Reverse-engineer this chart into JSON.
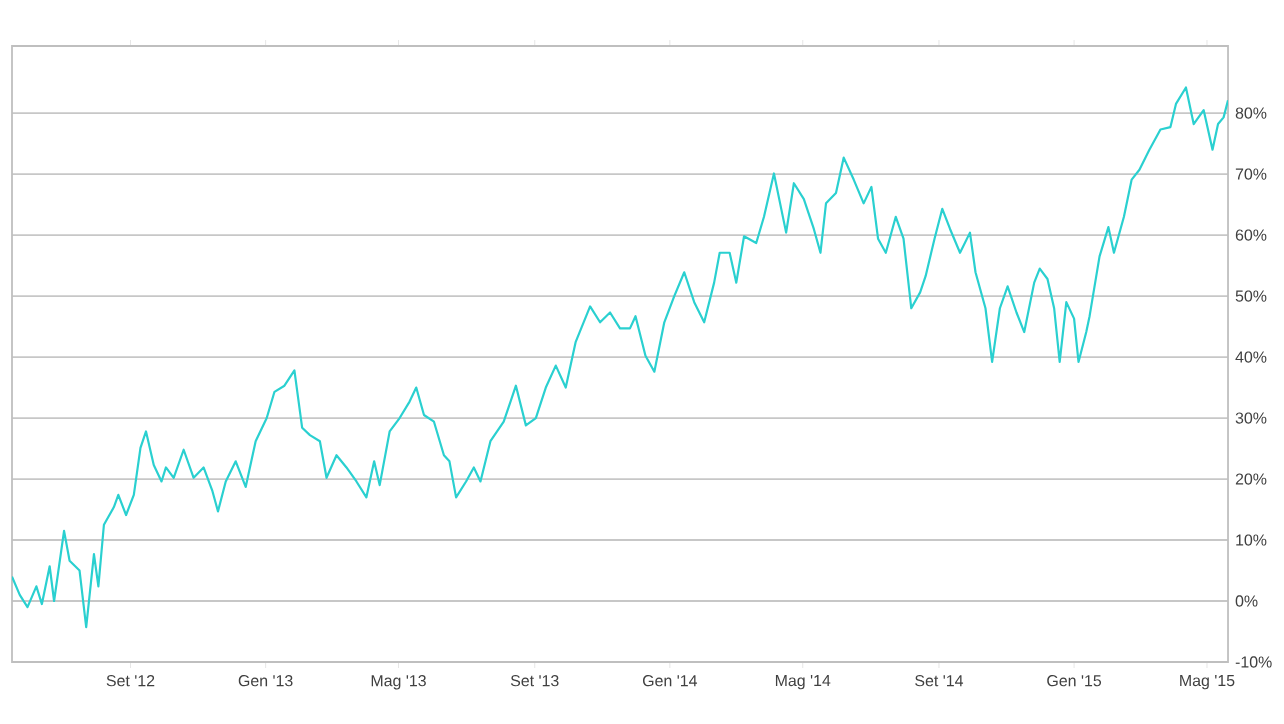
{
  "chart_data": {
    "type": "line",
    "color": "#2ad0d0",
    "xlim": [
      "2012-05-17",
      "2015-05-20"
    ],
    "ylim": [
      -10,
      91
    ],
    "xticks": [
      {
        "value": "2012-09-01",
        "label": "Set '12"
      },
      {
        "value": "2013-01-01",
        "label": "Gen '13"
      },
      {
        "value": "2013-05-01",
        "label": "Mag '13"
      },
      {
        "value": "2013-09-01",
        "label": "Set '13"
      },
      {
        "value": "2014-01-01",
        "label": "Gen '14"
      },
      {
        "value": "2014-05-01",
        "label": "Mag '14"
      },
      {
        "value": "2014-09-01",
        "label": "Set '14"
      },
      {
        "value": "2015-01-01",
        "label": "Gen '15"
      },
      {
        "value": "2015-05-01",
        "label": "Mag '15"
      }
    ],
    "yticks": [
      {
        "value": -10,
        "label": "-10%"
      },
      {
        "value": 0,
        "label": "0%"
      },
      {
        "value": 10,
        "label": "10%"
      },
      {
        "value": 20,
        "label": "20%"
      },
      {
        "value": 30,
        "label": "30%"
      },
      {
        "value": 40,
        "label": "40%"
      },
      {
        "value": 50,
        "label": "50%"
      },
      {
        "value": 60,
        "label": "60%"
      },
      {
        "value": 70,
        "label": "70%"
      },
      {
        "value": 80,
        "label": "80%"
      }
    ],
    "grid": "y",
    "marker": "none",
    "line_style": "solid",
    "x": [
      "2012-05-17",
      "2012-05-24",
      "2012-05-31",
      "2012-06-08",
      "2012-06-13",
      "2012-06-20",
      "2012-06-24",
      "2012-07-03",
      "2012-07-08",
      "2012-07-17",
      "2012-07-23",
      "2012-07-30",
      "2012-08-03",
      "2012-08-08",
      "2012-08-17",
      "2012-08-21",
      "2012-08-28",
      "2012-09-04",
      "2012-09-10",
      "2012-09-15",
      "2012-09-22",
      "2012-09-29",
      "2012-10-03",
      "2012-10-10",
      "2012-10-19",
      "2012-10-28",
      "2012-11-06",
      "2012-11-14",
      "2012-11-19",
      "2012-11-26",
      "2012-12-05",
      "2012-12-14",
      "2012-12-23",
      "2013-01-02",
      "2013-01-09",
      "2013-01-18",
      "2013-01-27",
      "2013-02-03",
      "2013-02-10",
      "2013-02-19",
      "2013-02-25",
      "2013-03-06",
      "2013-03-15",
      "2013-03-24",
      "2013-04-02",
      "2013-04-09",
      "2013-04-14",
      "2013-04-23",
      "2013-05-02",
      "2013-05-11",
      "2013-05-17",
      "2013-05-24",
      "2013-06-02",
      "2013-06-11",
      "2013-06-16",
      "2013-06-22",
      "2013-07-01",
      "2013-07-08",
      "2013-07-14",
      "2013-07-23",
      "2013-08-04",
      "2013-08-15",
      "2013-08-24",
      "2013-09-02",
      "2013-09-11",
      "2013-09-20",
      "2013-09-29",
      "2013-10-08",
      "2013-10-21",
      "2013-10-30",
      "2013-11-08",
      "2013-11-17",
      "2013-11-26",
      "2013-12-01",
      "2013-12-10",
      "2013-12-18",
      "2013-12-27",
      "2014-01-05",
      "2014-01-14",
      "2014-01-23",
      "2014-02-01",
      "2014-02-10",
      "2014-02-15",
      "2014-02-24",
      "2014-03-02",
      "2014-03-09",
      "2014-03-20",
      "2014-03-27",
      "2014-04-05",
      "2014-04-16",
      "2014-04-23",
      "2014-05-02",
      "2014-05-11",
      "2014-05-17",
      "2014-05-22",
      "2014-05-31",
      "2014-06-07",
      "2014-06-16",
      "2014-06-25",
      "2014-07-02",
      "2014-07-08",
      "2014-07-15",
      "2014-07-24",
      "2014-07-31",
      "2014-08-07",
      "2014-08-15",
      "2014-08-20",
      "2014-08-28",
      "2014-09-04",
      "2014-09-11",
      "2014-09-20",
      "2014-09-29",
      "2014-10-04",
      "2014-10-13",
      "2014-10-19",
      "2014-10-26",
      "2014-11-02",
      "2014-11-10",
      "2014-11-17",
      "2014-11-26",
      "2014-12-01",
      "2014-12-08",
      "2014-12-14",
      "2014-12-19",
      "2014-12-25",
      "2015-01-01",
      "2015-01-05",
      "2015-01-12",
      "2015-01-15",
      "2015-01-24",
      "2015-02-01",
      "2015-02-06",
      "2015-02-15",
      "2015-02-22",
      "2015-03-01",
      "2015-03-10",
      "2015-03-20",
      "2015-03-29",
      "2015-04-03",
      "2015-04-12",
      "2015-04-19",
      "2015-04-28",
      "2015-05-06",
      "2015-05-11",
      "2015-05-16",
      "2015-05-20"
    ],
    "values": [
      4,
      1,
      -1,
      2.4,
      -0.5,
      5.7,
      0,
      11.5,
      6.6,
      5,
      -4.3,
      7.7,
      2.4,
      12.5,
      15.4,
      17.4,
      14.1,
      17.4,
      25.1,
      27.8,
      22.3,
      19.6,
      21.9,
      20.2,
      24.8,
      20.2,
      21.9,
      18,
      14.7,
      19.6,
      22.9,
      18.7,
      26.2,
      30,
      34.3,
      35.3,
      37.8,
      28.4,
      27.2,
      26.2,
      20.2,
      23.9,
      21.9,
      19.6,
      17,
      22.9,
      19,
      27.8,
      30,
      32.7,
      35,
      30.5,
      29.4,
      23.9,
      22.9,
      17,
      19.6,
      21.9,
      19.6,
      26.2,
      29.4,
      35.3,
      28.8,
      30,
      35,
      38.6,
      35,
      42.5,
      48.3,
      45.7,
      47.3,
      44.7,
      44.7,
      46.7,
      40.2,
      37.6,
      45.7,
      50,
      53.9,
      49,
      45.7,
      52.2,
      57.1,
      57.1,
      52.2,
      59.8,
      58.7,
      63,
      70.1,
      60.4,
      68.5,
      65.9,
      61,
      57.1,
      65.2,
      66.9,
      72.7,
      69.1,
      65.2,
      67.9,
      59.4,
      57.1,
      63,
      59.4,
      48,
      50.6,
      53.3,
      59.4,
      64.3,
      61,
      57.1,
      60.4,
      53.9,
      48,
      39.2,
      48,
      51.6,
      47.3,
      44.1,
      52.2,
      54.5,
      52.8,
      48,
      39.2,
      49,
      46.3,
      39.2,
      44.1,
      46.7,
      56.5,
      61.3,
      57.1,
      63,
      69.1,
      70.7,
      74,
      77.3,
      77.7,
      81.5,
      84.2,
      78.2,
      80.5,
      74,
      78.2,
      79.3,
      82.1
    ]
  }
}
